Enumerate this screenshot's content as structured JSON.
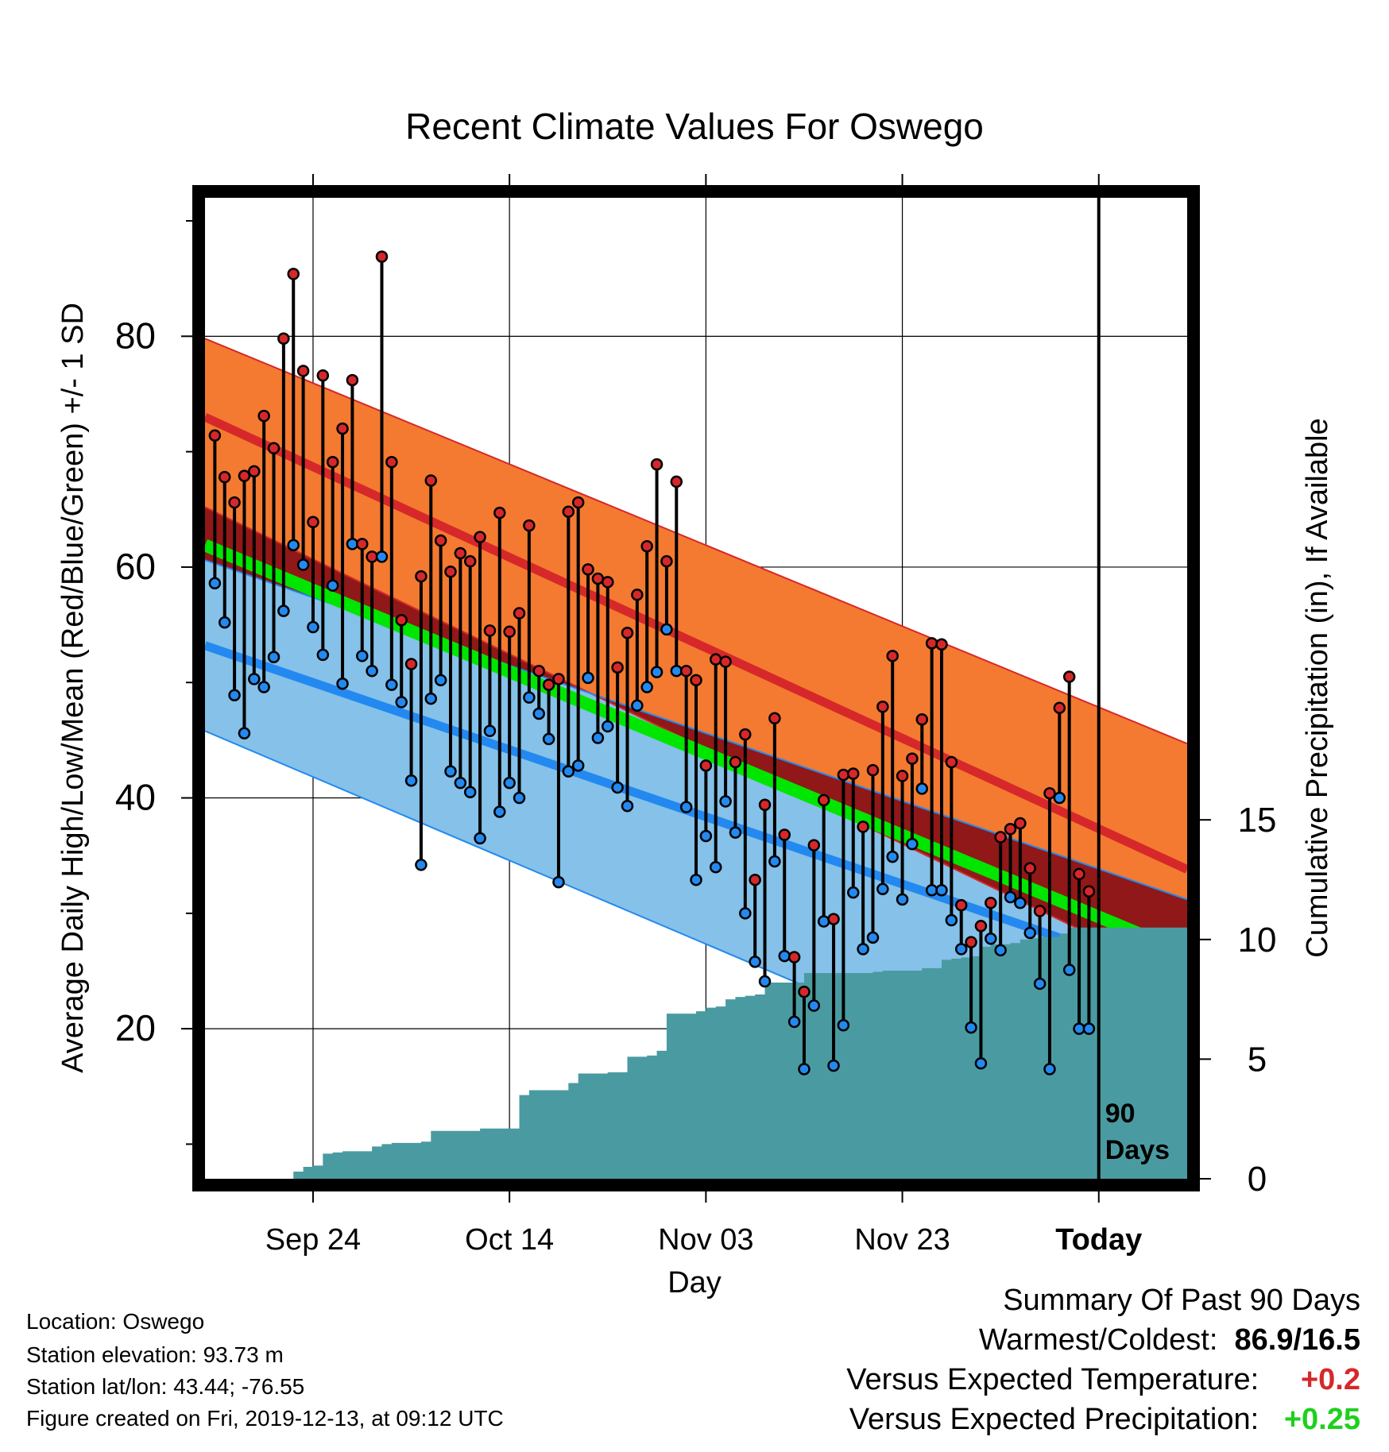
{
  "chart_data": {
    "type": "line",
    "title": "Recent Climate Values For Oswego",
    "xlabel": "Day",
    "ylabel_left": "Average Daily High/Low/Mean (Red/Blue/Green) +/- 1 SD",
    "ylabel_right": "Cumulative Precipitation (in), If Available",
    "x_tick_labels": [
      "Sep 24",
      "Oct 14",
      "Nov 03",
      "Nov 23",
      "Today"
    ],
    "x_tick_days": [
      -80,
      -60,
      -40,
      -20,
      0
    ],
    "xlim_days": [
      -91,
      9
    ],
    "ylim_left": [
      7,
      92
    ],
    "y_left_ticks": [
      20,
      40,
      60,
      80
    ],
    "y_left_minor_ticks": [
      10,
      30,
      50,
      70,
      90
    ],
    "ylim_right": [
      0,
      41
    ],
    "y_right_ticks": [
      0,
      5,
      10,
      15
    ],
    "grid": true,
    "today_marker_label": "90 Days",
    "normals": {
      "days": [
        -91,
        9
      ],
      "high_mean": [
        73.0,
        33.8
      ],
      "high_upper_sd": [
        79.8,
        44.7
      ],
      "high_lower_sd": [
        65.2,
        24.1
      ],
      "low_mean": [
        53.2,
        24.1
      ],
      "low_upper_sd": [
        60.6,
        31.2
      ],
      "low_lower_sd": [
        45.8,
        9.6
      ],
      "mean": [
        61.9,
        26.5
      ]
    },
    "colors": {
      "high_band": "#f37a30",
      "high_mean": "#d6282a",
      "low_band": "#85c1e8",
      "low_mean": "#2389f0",
      "mean_line": "#00e600",
      "band_overlap": "#901818",
      "precip": "#4a9ba1",
      "high_point": "#d6282a",
      "low_point": "#2389f0"
    },
    "observed_days": [
      -90,
      -89,
      -88,
      -87,
      -86,
      -85,
      -84,
      -83,
      -82,
      -81,
      -80,
      -79,
      -78,
      -77,
      -76,
      -75,
      -74,
      -73,
      -72,
      -71,
      -70,
      -69,
      -68,
      -67,
      -66,
      -65,
      -64,
      -63,
      -62,
      -61,
      -60,
      -59,
      -58,
      -57,
      -56,
      -55,
      -54,
      -53,
      -52,
      -51,
      -50,
      -49,
      -48,
      -47,
      -46,
      -45,
      -44,
      -43,
      -42,
      -41,
      -40,
      -39,
      -38,
      -37,
      -36,
      -35,
      -34,
      -33,
      -32,
      -31,
      -30,
      -29,
      -28,
      -27,
      -26,
      -25,
      -24,
      -23,
      -22,
      -21,
      -20,
      -19,
      -18,
      -17,
      -16,
      -15,
      -14,
      -13,
      -12,
      -11,
      -10,
      -9,
      -8,
      -7,
      -6,
      -5,
      -4,
      -3,
      -2,
      -1
    ],
    "series": [
      {
        "name": "High",
        "values": [
          71.4,
          67.8,
          65.6,
          67.9,
          68.3,
          73.1,
          70.3,
          79.8,
          85.4,
          77.0,
          63.9,
          76.6,
          69.1,
          72.0,
          76.2,
          62.0,
          60.9,
          86.9,
          69.1,
          55.4,
          51.6,
          59.2,
          67.5,
          62.3,
          59.6,
          61.2,
          60.5,
          62.6,
          54.5,
          64.7,
          54.4,
          56.0,
          63.6,
          51.0,
          49.8,
          50.3,
          64.8,
          65.6,
          59.8,
          59.0,
          58.7,
          51.3,
          54.3,
          57.6,
          61.8,
          68.9,
          60.5,
          67.4,
          51.0,
          50.2,
          42.8,
          52.0,
          51.8,
          43.1,
          45.5,
          32.9,
          39.4,
          46.9,
          36.8,
          26.2,
          23.2,
          35.9,
          39.8,
          29.5,
          42.0,
          42.1,
          37.5,
          42.4,
          47.9,
          52.3,
          41.9,
          43.4,
          46.8,
          53.4,
          53.3,
          43.1,
          30.7,
          27.5,
          28.9,
          30.9,
          36.6,
          37.3,
          37.8,
          33.9,
          30.2,
          40.4,
          47.8,
          50.5,
          33.4,
          31.9
        ]
      },
      {
        "name": "Low",
        "values": [
          58.6,
          55.2,
          48.9,
          45.6,
          50.3,
          49.6,
          52.2,
          56.2,
          61.9,
          60.2,
          54.8,
          52.4,
          58.4,
          49.9,
          62.0,
          52.3,
          51.0,
          60.9,
          49.8,
          48.3,
          41.5,
          34.2,
          48.6,
          50.2,
          42.3,
          41.3,
          40.5,
          36.5,
          45.8,
          38.8,
          41.3,
          40.0,
          48.7,
          47.3,
          45.1,
          32.7,
          42.3,
          42.8,
          50.4,
          45.2,
          46.2,
          40.9,
          39.3,
          48.0,
          49.6,
          50.9,
          54.6,
          51.0,
          39.2,
          32.9,
          36.7,
          34.0,
          39.7,
          37.0,
          30.0,
          25.8,
          24.1,
          34.5,
          26.3,
          20.6,
          16.5,
          22.0,
          29.3,
          16.8,
          20.3,
          31.8,
          26.9,
          27.9,
          32.1,
          34.9,
          31.2,
          36.0,
          40.8,
          32.0,
          32.0,
          29.4,
          26.9,
          20.1,
          17.0,
          27.8,
          26.8,
          31.4,
          30.9,
          28.3,
          23.9,
          16.5,
          40.0,
          25.1,
          20.0,
          20.0
        ]
      }
    ],
    "precip_cumulative": [
      0.0,
      0.0,
      0.0,
      0.0,
      0.0,
      0.0,
      0.0,
      0.0,
      0.0,
      0.3,
      0.5,
      0.55,
      1.05,
      1.1,
      1.15,
      1.15,
      1.15,
      1.35,
      1.45,
      1.5,
      1.5,
      1.5,
      1.55,
      2.0,
      2.0,
      2.0,
      2.0,
      2.0,
      2.1,
      2.1,
      2.1,
      2.1,
      3.5,
      3.7,
      3.7,
      3.7,
      3.7,
      4.0,
      4.4,
      4.4,
      4.4,
      4.45,
      4.45,
      5.1,
      5.1,
      5.15,
      5.35,
      6.9,
      6.9,
      6.9,
      7.0,
      7.15,
      7.2,
      7.5,
      7.6,
      7.65,
      7.7,
      8.2,
      8.2,
      8.2,
      8.2,
      8.6,
      8.6,
      8.6,
      8.6,
      8.6,
      8.6,
      8.6,
      8.65,
      8.7,
      8.7,
      8.7,
      8.7,
      8.8,
      8.8,
      9.15,
      9.2,
      9.25,
      9.3,
      9.7,
      9.8,
      9.8,
      9.85,
      10.0,
      10.05,
      10.1,
      10.1,
      10.25,
      10.5,
      10.5,
      10.5,
      10.5,
      10.5,
      10.5,
      10.5,
      10.5,
      10.5,
      10.5,
      10.5,
      10.5
    ]
  },
  "info": {
    "location": "Location: Oswego",
    "elevation": "Station elevation: 93.73 m",
    "latlon": "Station lat/lon: 43.44; -76.55",
    "created": "Figure created on Fri, 2019-12-13, at 09:12 UTC"
  },
  "summary": {
    "heading": "Summary Of Past 90 Days",
    "warmest_coldest_label": "Warmest/Coldest:",
    "warmest_coldest_value": "86.9/16.5",
    "temp_label": "Versus Expected Temperature:",
    "temp_value": "+0.2",
    "temp_color": "#d6282a",
    "precip_label": "Versus Expected Precipitation:",
    "precip_value": "+0.25",
    "precip_color": "#1ed01e"
  }
}
